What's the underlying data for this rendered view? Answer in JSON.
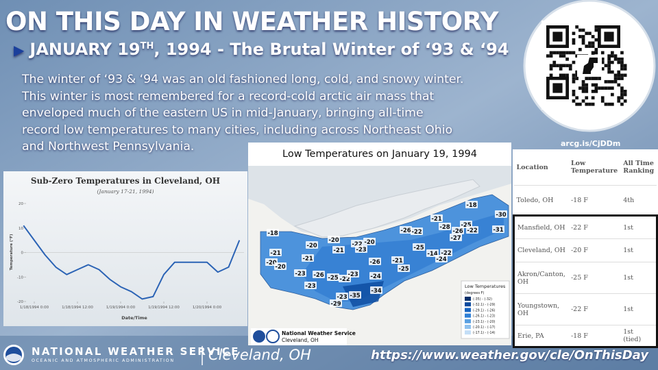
{
  "header": {
    "title": "ON THIS DAY IN WEATHER HISTORY",
    "subtitle_date": "JANUARY 19",
    "subtitle_sup": "TH",
    "subtitle_rest": ", 1994 - The Brutal Winter of ‘93 & ‘94"
  },
  "body": [
    "The winter of ‘93 & ‘94 was an old fashioned long, cold, and snowy winter.",
    "This winter is most remembered for a record-cold arctic air mass that",
    "enveloped much of the eastern US in mid-January, bringing all-time",
    "record low temperatures to many cities, including across Northeast Ohio",
    "and Northwest Pennsylvania."
  ],
  "qr": {
    "caption": "arcg.is/CjDDm"
  },
  "chart_data": {
    "type": "line",
    "title": "Sub-Zero Temperatures in Cleveland, OH",
    "subtitle": "(January 17-21, 1994)",
    "x_label": "Date/Time",
    "y_label": "Temperature (°F)",
    "color": "#2b63b5",
    "x": [
      "1/17/1994 21:00",
      "1/18/1994 0:00",
      "1/18/1994 3:00",
      "1/18/1994 6:00",
      "1/18/1994 9:00",
      "1/18/1994 12:00",
      "1/18/1994 15:00",
      "1/18/1994 18:00",
      "1/18/1994 21:00",
      "1/19/1994 0:00",
      "1/19/1994 3:00",
      "1/19/1994 6:00",
      "1/19/1994 9:00",
      "1/19/1994 12:00",
      "1/19/1994 15:00",
      "1/19/1994 18:00",
      "1/19/1994 21:00",
      "1/20/1994 0:00",
      "1/20/1994 3:00",
      "1/20/1994 6:00",
      "1/20/1994 9:00"
    ],
    "values": [
      11,
      5,
      -1,
      -6,
      -9,
      -7,
      -5,
      -7,
      -11,
      -14,
      -16,
      -19,
      -18,
      -9,
      -4,
      -4,
      -4,
      -4,
      -8,
      -6,
      5
    ],
    "xticks": [
      "1/18/1994 0:00",
      "1/18/1994 12:00",
      "1/19/1994 0:00",
      "1/19/1994 12:00",
      "1/20/1994 0:00"
    ],
    "ylim": [
      -20,
      20
    ],
    "yticks": [
      -20,
      -10,
      0,
      10,
      20
    ]
  },
  "map": {
    "title": "Low Temperatures on January 19, 1994",
    "labels": [
      "-18",
      "-30",
      "-21",
      "-25",
      "-28",
      "-31",
      "-26",
      "-22",
      "-26",
      "-22",
      "-27",
      "-18",
      "-20",
      "-20",
      "-22",
      "-20",
      "-21",
      "-23",
      "-25",
      "-14",
      "-22",
      "-21",
      "-21",
      "-21",
      "-24",
      "-20",
      "-26",
      "-20",
      "-25",
      "-23",
      "-26",
      "-25",
      "-22",
      "-23",
      "-24",
      "-23",
      "-34",
      "-35",
      "-23",
      "-29"
    ],
    "legend_title": "Low Temperatures",
    "legend_unit": "(degrees F)",
    "legend": [
      {
        "label": "(-35) - (-32)",
        "color": "#08306b"
      },
      {
        "label": "(-32.1) - (-29)",
        "color": "#0b4a9e"
      },
      {
        "label": "(-29.1) - (-26)",
        "color": "#1764c0"
      },
      {
        "label": "(-26.1) - (-23)",
        "color": "#2f80d6"
      },
      {
        "label": "(-23.1) - (-20)",
        "color": "#5aa0e2"
      },
      {
        "label": "(-20.1) - (-17)",
        "color": "#8fc1ee"
      },
      {
        "label": "(-17.1) - (-14)",
        "color": "#c3def7"
      }
    ],
    "credit": [
      "National Weather Service",
      "Cleveland, OH"
    ]
  },
  "table": {
    "header": [
      "Location",
      "Low Temperature",
      "All Time Ranking"
    ],
    "rows": [
      [
        "Toledo, OH",
        "-18 F",
        "4th"
      ],
      [
        "Mansfield, OH",
        "-22 F",
        "1st"
      ],
      [
        "Cleveland, OH",
        "-20 F",
        "1st"
      ],
      [
        "Akron/Canton, OH",
        "-25 F",
        "1st"
      ],
      [
        "Youngstown, OH",
        "-22 F",
        "1st"
      ],
      [
        "Erie, PA",
        "-18 F",
        "1st (tied)"
      ]
    ]
  },
  "footer": {
    "agency": "NATIONAL WEATHER SERVICE",
    "parent": "OCEANIC AND ATMOSPHERIC ADMINISTRATION",
    "office": "Cleveland, OH",
    "url": "https://www.weather.gov/cle/OnThisDay"
  }
}
